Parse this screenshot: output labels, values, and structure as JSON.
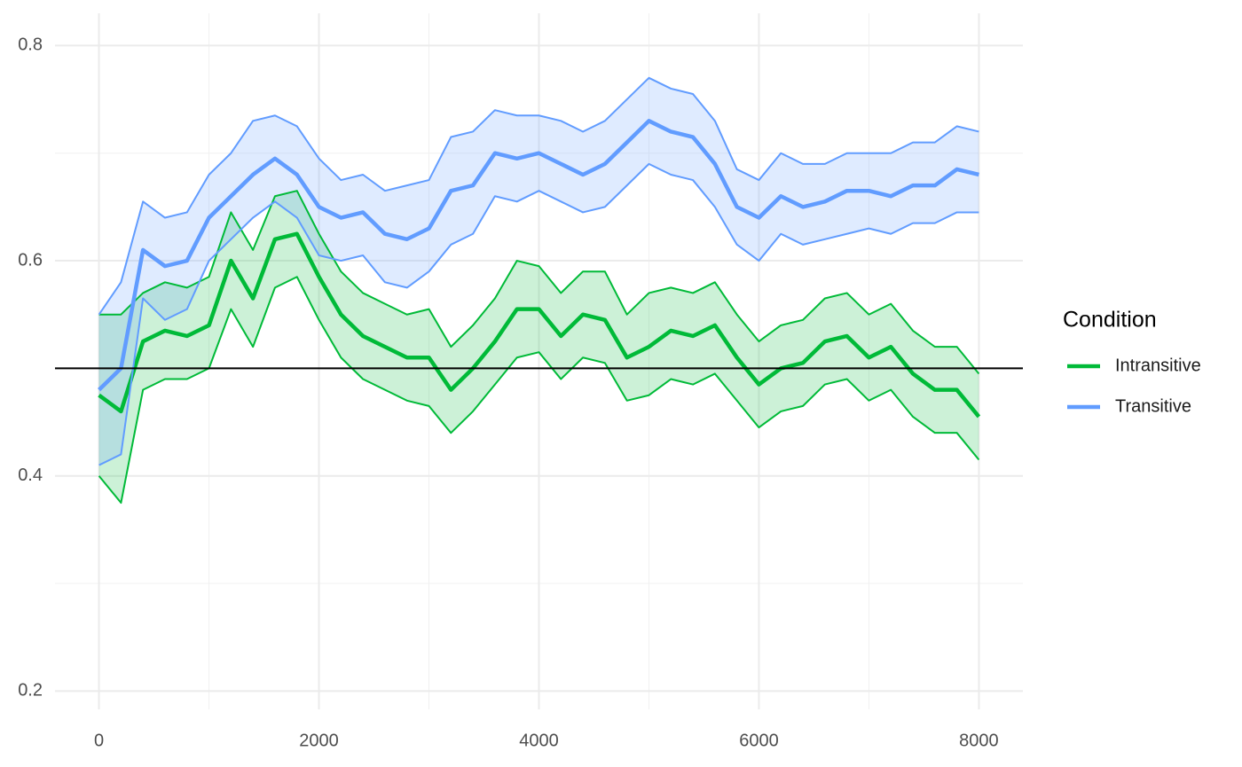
{
  "chart_data": {
    "type": "line",
    "x": [
      0,
      200,
      400,
      600,
      800,
      1000,
      1200,
      1400,
      1600,
      1800,
      2000,
      2200,
      2400,
      2600,
      2800,
      3000,
      3200,
      3400,
      3600,
      3800,
      4000,
      4200,
      4400,
      4600,
      4800,
      5000,
      5200,
      5400,
      5600,
      5800,
      6000,
      6200,
      6400,
      6600,
      6800,
      7000,
      7200,
      7400,
      7600,
      7800,
      8000
    ],
    "series": [
      {
        "name": "Intransitive",
        "color": "#00ba38",
        "values": [
          0.475,
          0.46,
          0.525,
          0.535,
          0.53,
          0.54,
          0.6,
          0.565,
          0.62,
          0.625,
          0.585,
          0.55,
          0.53,
          0.52,
          0.51,
          0.51,
          0.48,
          0.5,
          0.525,
          0.555,
          0.555,
          0.53,
          0.55,
          0.545,
          0.51,
          0.52,
          0.535,
          0.53,
          0.54,
          0.51,
          0.485,
          0.5,
          0.505,
          0.525,
          0.53,
          0.51,
          0.52,
          0.495,
          0.48,
          0.48,
          0.455
        ],
        "upper": [
          0.55,
          0.55,
          0.57,
          0.58,
          0.575,
          0.585,
          0.645,
          0.61,
          0.66,
          0.665,
          0.625,
          0.59,
          0.57,
          0.56,
          0.55,
          0.555,
          0.52,
          0.54,
          0.565,
          0.6,
          0.595,
          0.57,
          0.59,
          0.59,
          0.55,
          0.57,
          0.575,
          0.57,
          0.58,
          0.55,
          0.525,
          0.54,
          0.545,
          0.565,
          0.57,
          0.55,
          0.56,
          0.535,
          0.52,
          0.52,
          0.495
        ],
        "lower": [
          0.4,
          0.375,
          0.48,
          0.49,
          0.49,
          0.5,
          0.555,
          0.52,
          0.575,
          0.585,
          0.545,
          0.51,
          0.49,
          0.48,
          0.47,
          0.465,
          0.44,
          0.46,
          0.485,
          0.51,
          0.515,
          0.49,
          0.51,
          0.505,
          0.47,
          0.475,
          0.49,
          0.485,
          0.495,
          0.47,
          0.445,
          0.46,
          0.465,
          0.485,
          0.49,
          0.47,
          0.48,
          0.455,
          0.44,
          0.44,
          0.415
        ]
      },
      {
        "name": "Transitive",
        "color": "#619cff",
        "values": [
          0.48,
          0.5,
          0.61,
          0.595,
          0.6,
          0.64,
          0.66,
          0.68,
          0.695,
          0.68,
          0.65,
          0.64,
          0.645,
          0.625,
          0.62,
          0.63,
          0.665,
          0.67,
          0.7,
          0.695,
          0.7,
          0.69,
          0.68,
          0.69,
          0.71,
          0.73,
          0.72,
          0.715,
          0.69,
          0.65,
          0.64,
          0.66,
          0.65,
          0.655,
          0.665,
          0.665,
          0.66,
          0.67,
          0.67,
          0.685,
          0.68
        ],
        "upper": [
          0.55,
          0.58,
          0.655,
          0.64,
          0.645,
          0.68,
          0.7,
          0.73,
          0.735,
          0.725,
          0.695,
          0.675,
          0.68,
          0.665,
          0.67,
          0.675,
          0.715,
          0.72,
          0.74,
          0.735,
          0.735,
          0.73,
          0.72,
          0.73,
          0.75,
          0.77,
          0.76,
          0.755,
          0.73,
          0.685,
          0.675,
          0.7,
          0.69,
          0.69,
          0.7,
          0.7,
          0.7,
          0.71,
          0.71,
          0.725,
          0.72
        ],
        "lower": [
          0.41,
          0.42,
          0.565,
          0.545,
          0.555,
          0.6,
          0.62,
          0.64,
          0.655,
          0.64,
          0.605,
          0.6,
          0.605,
          0.58,
          0.575,
          0.59,
          0.615,
          0.625,
          0.66,
          0.655,
          0.665,
          0.655,
          0.645,
          0.65,
          0.67,
          0.69,
          0.68,
          0.675,
          0.65,
          0.615,
          0.6,
          0.625,
          0.615,
          0.62,
          0.625,
          0.63,
          0.625,
          0.635,
          0.635,
          0.645,
          0.645
        ]
      }
    ],
    "hline": 0.5,
    "xlim": [
      -400,
      8400
    ],
    "ylim": [
      0.183,
      0.83
    ],
    "xticks": [
      0,
      2000,
      4000,
      6000,
      8000
    ],
    "yticks": [
      0.2,
      0.4,
      0.6,
      0.8
    ],
    "x_minor_ticks": [
      1000,
      3000,
      5000,
      7000
    ],
    "y_minor_ticks": [
      0.3,
      0.5,
      0.7
    ],
    "grid": true,
    "legend_title": "Condition",
    "legend_position": "right"
  }
}
